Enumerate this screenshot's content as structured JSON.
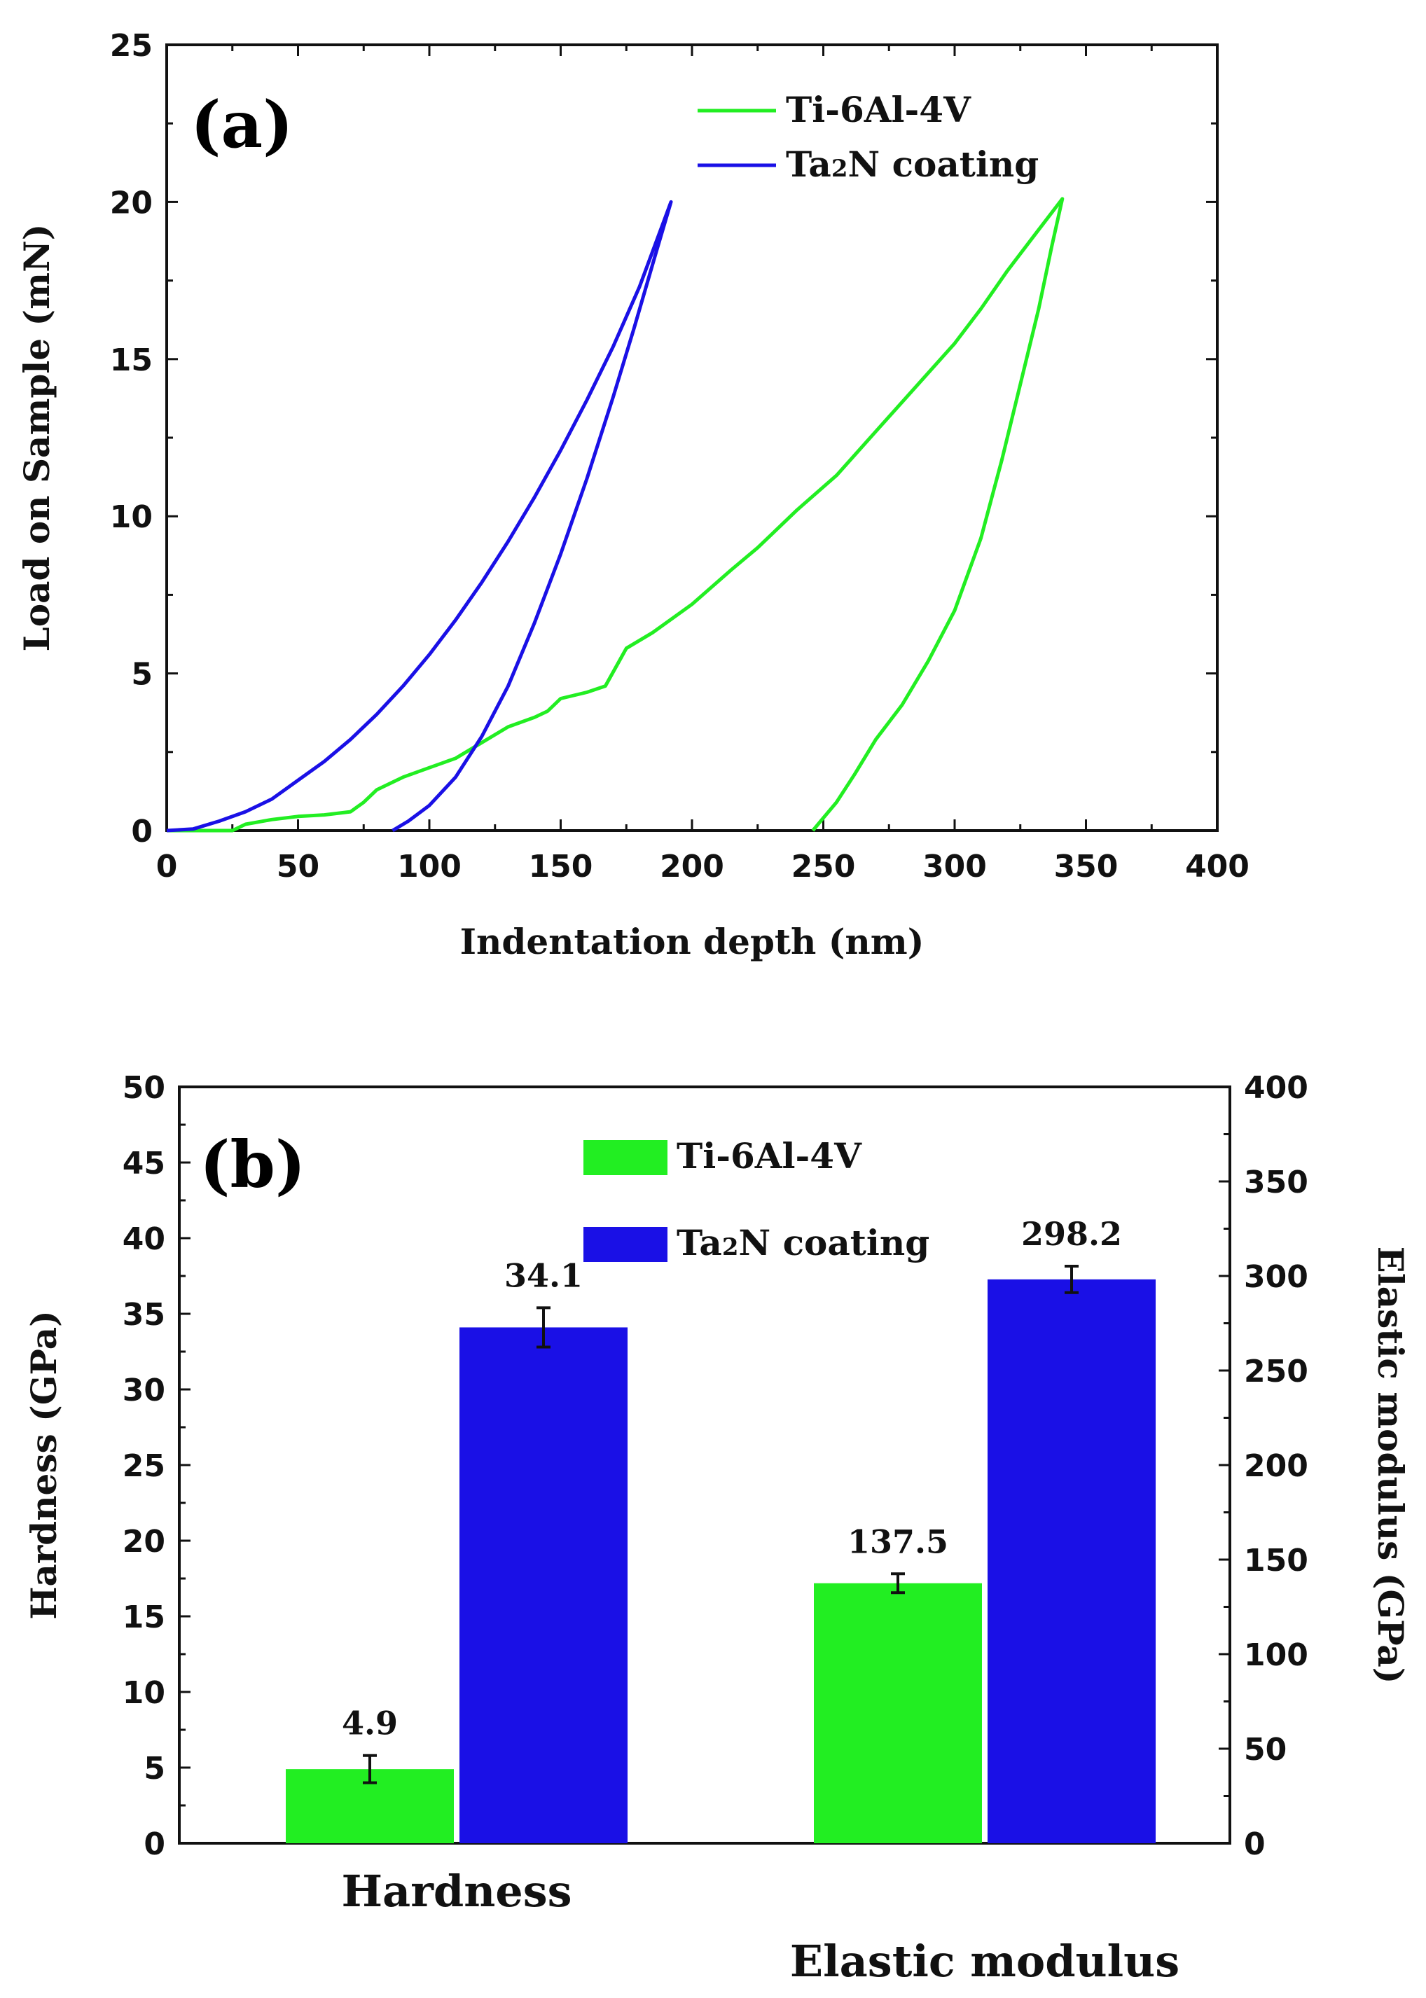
{
  "chart_data": [
    {
      "type": "line",
      "panel_label": "(a)",
      "xlabel": "Indentation depth (nm)",
      "ylabel": "Load on Sample (mN)",
      "xlim": [
        0,
        400
      ],
      "ylim": [
        0,
        25
      ],
      "xticks": [
        "0",
        "50",
        "100",
        "150",
        "200",
        "250",
        "300",
        "350",
        "400"
      ],
      "yticks": [
        "0",
        "5",
        "10",
        "15",
        "20",
        "25"
      ],
      "legend_position": "top-right",
      "series": [
        {
          "name": "Ti-6Al-4V",
          "color": "#22ee22",
          "loading": [
            [
              0,
              0
            ],
            [
              25,
              0
            ],
            [
              30,
              0.2
            ],
            [
              40,
              0.35
            ],
            [
              50,
              0.45
            ],
            [
              60,
              0.5
            ],
            [
              70,
              0.6
            ],
            [
              75,
              0.9
            ],
            [
              80,
              1.3
            ],
            [
              90,
              1.7
            ],
            [
              100,
              2.0
            ],
            [
              110,
              2.3
            ],
            [
              120,
              2.8
            ],
            [
              130,
              3.3
            ],
            [
              140,
              3.6
            ],
            [
              145,
              3.8
            ],
            [
              150,
              4.2
            ],
            [
              160,
              4.4
            ],
            [
              167,
              4.6
            ],
            [
              175,
              5.8
            ],
            [
              185,
              6.3
            ],
            [
              200,
              7.2
            ],
            [
              215,
              8.3
            ],
            [
              225,
              9.0
            ],
            [
              240,
              10.2
            ],
            [
              255,
              11.3
            ],
            [
              270,
              12.7
            ],
            [
              285,
              14.1
            ],
            [
              300,
              15.5
            ],
            [
              310,
              16.6
            ],
            [
              320,
              17.8
            ],
            [
              330,
              18.9
            ],
            [
              341,
              20.1
            ]
          ],
          "unloading": [
            [
              341,
              20.1
            ],
            [
              337,
              18.6
            ],
            [
              332,
              16.6
            ],
            [
              325,
              14.2
            ],
            [
              318,
              11.8
            ],
            [
              310,
              9.3
            ],
            [
              300,
              7.0
            ],
            [
              290,
              5.4
            ],
            [
              280,
              4.0
            ],
            [
              270,
              2.9
            ],
            [
              262,
              1.8
            ],
            [
              255,
              0.9
            ],
            [
              250,
              0.4
            ],
            [
              246,
              0
            ]
          ]
        },
        {
          "name": "Ta2N coating",
          "legend_text_main": "Ta",
          "legend_text_sub": "2",
          "legend_text_rest": "N coating",
          "color": "#1a10e6",
          "loading": [
            [
              0,
              0
            ],
            [
              10,
              0.05
            ],
            [
              20,
              0.3
            ],
            [
              30,
              0.6
            ],
            [
              40,
              1.0
            ],
            [
              50,
              1.6
            ],
            [
              60,
              2.2
            ],
            [
              70,
              2.9
            ],
            [
              80,
              3.7
            ],
            [
              90,
              4.6
            ],
            [
              100,
              5.6
            ],
            [
              110,
              6.7
            ],
            [
              120,
              7.9
            ],
            [
              130,
              9.2
            ],
            [
              140,
              10.6
            ],
            [
              150,
              12.1
            ],
            [
              160,
              13.7
            ],
            [
              170,
              15.4
            ],
            [
              180,
              17.3
            ],
            [
              192,
              20.0
            ]
          ],
          "unloading": [
            [
              192,
              20.0
            ],
            [
              186,
              18.3
            ],
            [
              178,
              16.0
            ],
            [
              170,
              13.8
            ],
            [
              160,
              11.2
            ],
            [
              150,
              8.8
            ],
            [
              140,
              6.6
            ],
            [
              130,
              4.6
            ],
            [
              120,
              3.0
            ],
            [
              110,
              1.7
            ],
            [
              100,
              0.8
            ],
            [
              92,
              0.3
            ],
            [
              86,
              0
            ]
          ]
        }
      ]
    },
    {
      "type": "bar",
      "panel_label": "(b)",
      "categories": [
        "Hardness",
        "Elastic modulus"
      ],
      "ylabel_left": "Hardness (GPa)",
      "ylabel_right": "Elastic modulus (GPa)",
      "ylim_left": [
        0,
        50
      ],
      "ylim_right": [
        0,
        400
      ],
      "yticks_left": [
        "0",
        "5",
        "10",
        "15",
        "20",
        "25",
        "30",
        "35",
        "40",
        "45",
        "50"
      ],
      "yticks_right": [
        "0",
        "50",
        "100",
        "150",
        "200",
        "250",
        "300",
        "350",
        "400"
      ],
      "legend_position": "top-center",
      "series": [
        {
          "name": "Ti-6Al-4V",
          "color": "#22ee22",
          "values": [
            4.9,
            137.5
          ],
          "errors": [
            0.9,
            5
          ],
          "labels": [
            "4.9",
            "137.5"
          ],
          "axis": [
            "left",
            "right"
          ]
        },
        {
          "name": "Ta2N coating",
          "legend_text_main": "Ta",
          "legend_text_sub": "2",
          "legend_text_rest": "N coating",
          "color": "#1a10e6",
          "values": [
            34.1,
            298.2
          ],
          "errors": [
            1.3,
            7
          ],
          "labels": [
            "34.1",
            "298.2"
          ],
          "axis": [
            "left",
            "right"
          ]
        }
      ]
    }
  ]
}
